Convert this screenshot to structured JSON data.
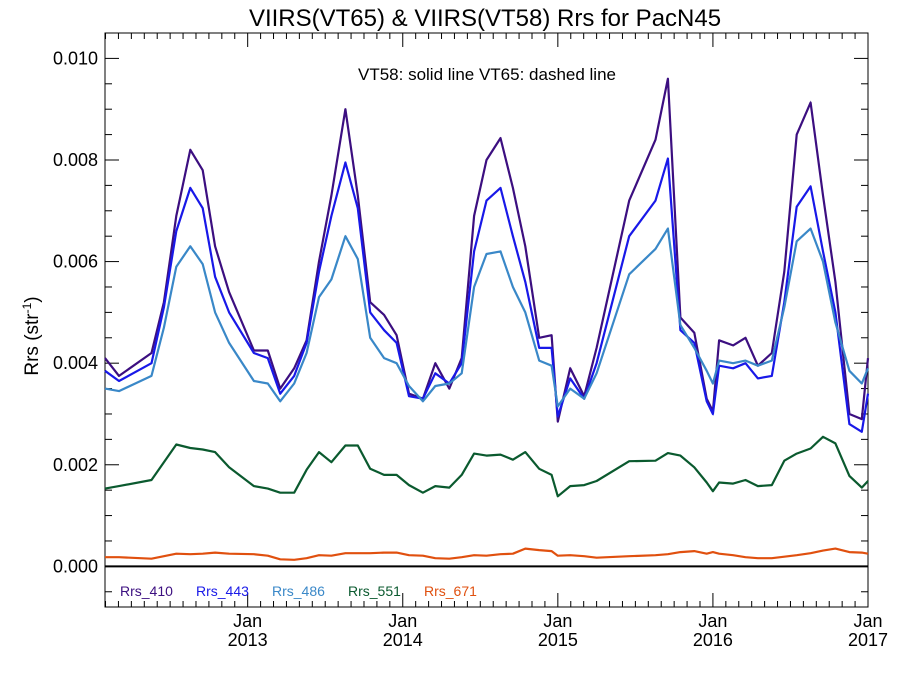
{
  "chart_data": {
    "type": "line",
    "title": "VIIRS(VT65) & VIIRS(VT58)  Rrs for PacN45",
    "annotation": "VT58: solid line   VT65: dashed line",
    "ylabel": {
      "base": "Rrs (str",
      "sup": "-1",
      "tail": ")"
    },
    "xlabel": "",
    "xlim": [
      2012.08,
      2017.0
    ],
    "ylim": [
      -0.0008,
      0.0105
    ],
    "y_ticks": [
      "0.000",
      "0.002",
      "0.004",
      "0.006",
      "0.008",
      "0.010"
    ],
    "y_tick_values": [
      0.0,
      0.002,
      0.004,
      0.006,
      0.008,
      0.01
    ],
    "x_ticks": [
      {
        "value": 2013,
        "month": "Jan",
        "year": "2013"
      },
      {
        "value": 2014,
        "month": "Jan",
        "year": "2014"
      },
      {
        "value": 2015,
        "month": "Jan",
        "year": "2015"
      },
      {
        "value": 2016,
        "month": "Jan",
        "year": "2016"
      },
      {
        "value": 2017,
        "month": "Jan",
        "year": "2017"
      }
    ],
    "zero_line": 0.0,
    "legend_placement": "bottom-left",
    "x": [
      2012.08,
      2012.17,
      2012.38,
      2012.46,
      2012.54,
      2012.63,
      2012.71,
      2012.79,
      2012.88,
      2013.04,
      2013.13,
      2013.21,
      2013.3,
      2013.38,
      2013.46,
      2013.54,
      2013.63,
      2013.71,
      2013.79,
      2013.88,
      2013.96,
      2014.04,
      2014.13,
      2014.21,
      2014.3,
      2014.38,
      2014.46,
      2014.54,
      2014.63,
      2014.71,
      2014.79,
      2014.88,
      2014.96,
      2015.0,
      2015.08,
      2015.17,
      2015.25,
      2015.46,
      2015.63,
      2015.71,
      2015.79,
      2015.88,
      2015.96,
      2016.0,
      2016.04,
      2016.13,
      2016.21,
      2016.29,
      2016.38,
      2016.46,
      2016.54,
      2016.63,
      2016.71,
      2016.79,
      2016.88,
      2016.96,
      2017.0
    ],
    "series": [
      {
        "name": "Rrs_410",
        "color": "#3c0f80",
        "values": [
          0.0041,
          0.00375,
          0.0042,
          0.0052,
          0.0069,
          0.0082,
          0.0078,
          0.0063,
          0.0054,
          0.00425,
          0.00425,
          0.0035,
          0.0039,
          0.00445,
          0.006,
          0.0073,
          0.009,
          0.0073,
          0.0052,
          0.00495,
          0.00455,
          0.0034,
          0.0033,
          0.004,
          0.0035,
          0.0041,
          0.0069,
          0.008,
          0.00843,
          0.00745,
          0.0063,
          0.0045,
          0.00455,
          0.00285,
          0.0039,
          0.00335,
          0.0043,
          0.0072,
          0.0084,
          0.0096,
          0.0049,
          0.0046,
          0.0033,
          0.00305,
          0.00445,
          0.00435,
          0.0045,
          0.00395,
          0.0042,
          0.0058,
          0.0085,
          0.00913,
          0.0073,
          0.0056,
          0.003,
          0.0029,
          0.0041
        ]
      },
      {
        "name": "Rrs_443",
        "color": "#1919e8",
        "values": [
          0.00385,
          0.00365,
          0.004,
          0.0051,
          0.0066,
          0.00745,
          0.00705,
          0.0057,
          0.005,
          0.0042,
          0.0041,
          0.0034,
          0.00375,
          0.0044,
          0.0058,
          0.0069,
          0.00795,
          0.00705,
          0.005,
          0.00465,
          0.0044,
          0.00335,
          0.0033,
          0.0038,
          0.0036,
          0.004,
          0.0062,
          0.0072,
          0.00745,
          0.0065,
          0.0056,
          0.0043,
          0.0043,
          0.00295,
          0.0037,
          0.0033,
          0.004,
          0.0065,
          0.0072,
          0.00803,
          0.00465,
          0.0044,
          0.00325,
          0.003,
          0.00395,
          0.0039,
          0.004,
          0.0037,
          0.00375,
          0.0052,
          0.00708,
          0.00748,
          0.0062,
          0.005,
          0.0028,
          0.00265,
          0.0034
        ]
      },
      {
        "name": "Rrs_486",
        "color": "#3a88c8",
        "values": [
          0.0035,
          0.00345,
          0.00375,
          0.0047,
          0.0059,
          0.0063,
          0.00595,
          0.005,
          0.0044,
          0.00365,
          0.0036,
          0.00325,
          0.0036,
          0.0042,
          0.0053,
          0.00565,
          0.0065,
          0.00605,
          0.0045,
          0.0041,
          0.004,
          0.00355,
          0.00325,
          0.00355,
          0.0036,
          0.0038,
          0.0055,
          0.00615,
          0.0062,
          0.0055,
          0.005,
          0.00405,
          0.00395,
          0.00315,
          0.0035,
          0.0033,
          0.0038,
          0.00575,
          0.00625,
          0.00665,
          0.00475,
          0.0043,
          0.00385,
          0.0036,
          0.00405,
          0.004,
          0.00405,
          0.00395,
          0.00405,
          0.0051,
          0.0064,
          0.00665,
          0.006,
          0.0048,
          0.00385,
          0.0036,
          0.0039
        ]
      },
      {
        "name": "Rrs_551",
        "color": "#0b5a2f",
        "values": [
          0.00153,
          0.00158,
          0.0017,
          0.00205,
          0.0024,
          0.00233,
          0.0023,
          0.00225,
          0.00195,
          0.00158,
          0.00153,
          0.00145,
          0.00145,
          0.0019,
          0.00225,
          0.00205,
          0.00238,
          0.00238,
          0.00192,
          0.0018,
          0.0018,
          0.0016,
          0.00145,
          0.00158,
          0.00155,
          0.0018,
          0.00222,
          0.00218,
          0.0022,
          0.0021,
          0.00225,
          0.00192,
          0.0018,
          0.00138,
          0.00158,
          0.0016,
          0.00168,
          0.00207,
          0.00208,
          0.00223,
          0.00218,
          0.00195,
          0.00165,
          0.00148,
          0.00165,
          0.00163,
          0.0017,
          0.00158,
          0.0016,
          0.00208,
          0.00222,
          0.00232,
          0.00255,
          0.00242,
          0.00178,
          0.00155,
          0.00168
        ]
      },
      {
        "name": "Rrs_671",
        "color": "#e0500f",
        "values": [
          0.00018,
          0.00018,
          0.00015,
          0.0002,
          0.00025,
          0.00024,
          0.00025,
          0.00027,
          0.00025,
          0.00024,
          0.00021,
          0.00014,
          0.00013,
          0.00016,
          0.00022,
          0.00021,
          0.00026,
          0.00026,
          0.00026,
          0.00027,
          0.00027,
          0.00022,
          0.00021,
          0.00016,
          0.00015,
          0.00018,
          0.00022,
          0.00021,
          0.00024,
          0.00025,
          0.00035,
          0.00032,
          0.0003,
          0.00021,
          0.00022,
          0.0002,
          0.00017,
          0.0002,
          0.00022,
          0.00024,
          0.00028,
          0.0003,
          0.00025,
          0.00028,
          0.00025,
          0.00022,
          0.00018,
          0.00016,
          0.00016,
          0.00019,
          0.00022,
          0.00026,
          0.00031,
          0.00035,
          0.00028,
          0.00027,
          0.00025
        ]
      }
    ]
  }
}
